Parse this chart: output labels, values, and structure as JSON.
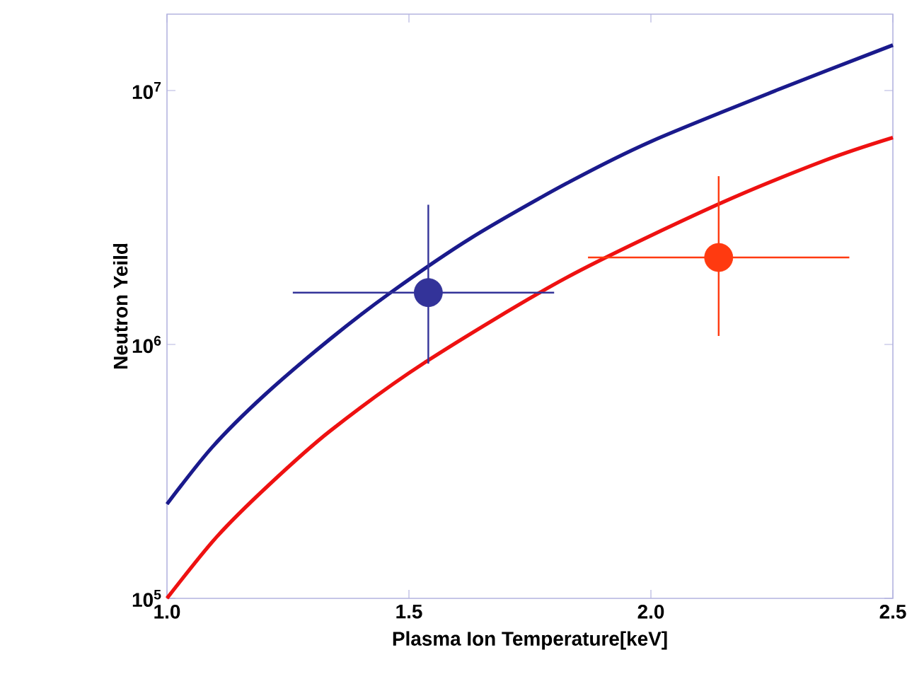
{
  "chart_data": {
    "type": "line",
    "xlabel": "Plasma Ion Temperature[keV]",
    "ylabel": "Neutron Yeild",
    "log": "y",
    "grid": false,
    "line_style": "solid",
    "xlim": [
      1.0,
      2.5
    ],
    "ylim": [
      100000,
      20000000
    ],
    "xticks": [
      {
        "value": 1.0,
        "label": "1.0"
      },
      {
        "value": 1.5,
        "label": "1.5"
      },
      {
        "value": 2.0,
        "label": "2.0"
      },
      {
        "value": 2.5,
        "label": "2.5"
      }
    ],
    "yticks": [
      {
        "value": 100000,
        "label": "10$^{5}$"
      },
      {
        "value": 1000000,
        "label": "10$^{6}$"
      },
      {
        "value": 10000000,
        "label": "10$^{7}$"
      }
    ],
    "series": [
      {
        "color": "#1a1a8c",
        "marker": "none",
        "x": [
          1.0,
          1.093,
          1.2,
          1.337,
          1.464,
          1.629,
          1.825,
          2.0,
          2.264,
          2.5
        ],
        "values": [
          235000,
          393000,
          628000,
          1050000,
          1610000,
          2630000,
          4300000,
          6300000,
          10100000,
          15100000
        ]
      },
      {
        "color": "#ee1111",
        "marker": "none",
        "x": [
          1.0,
          1.102,
          1.21,
          1.337,
          1.532,
          1.825,
          2.137,
          2.361,
          2.5
        ],
        "values": [
          100000,
          174000,
          279000,
          456000,
          847000,
          1830000,
          3550000,
          5320000,
          6530000
        ]
      },
      {
        "type": "scatter",
        "color": "#333399",
        "marker": "circle",
        "x": [
          1.54
        ],
        "values": [
          1600000
        ],
        "errors": [
          [
            840000,
            3550000
          ]
        ],
        "xerrors": [
          [
            1.26,
            1.8
          ]
        ]
      },
      {
        "type": "scatter",
        "color": "#ff3a10",
        "marker": "circle",
        "x": [
          2.14
        ],
        "values": [
          2200000
        ],
        "errors": [
          [
            1080000,
            4600000
          ]
        ],
        "xerrors": [
          [
            1.87,
            2.41
          ]
        ]
      }
    ]
  }
}
